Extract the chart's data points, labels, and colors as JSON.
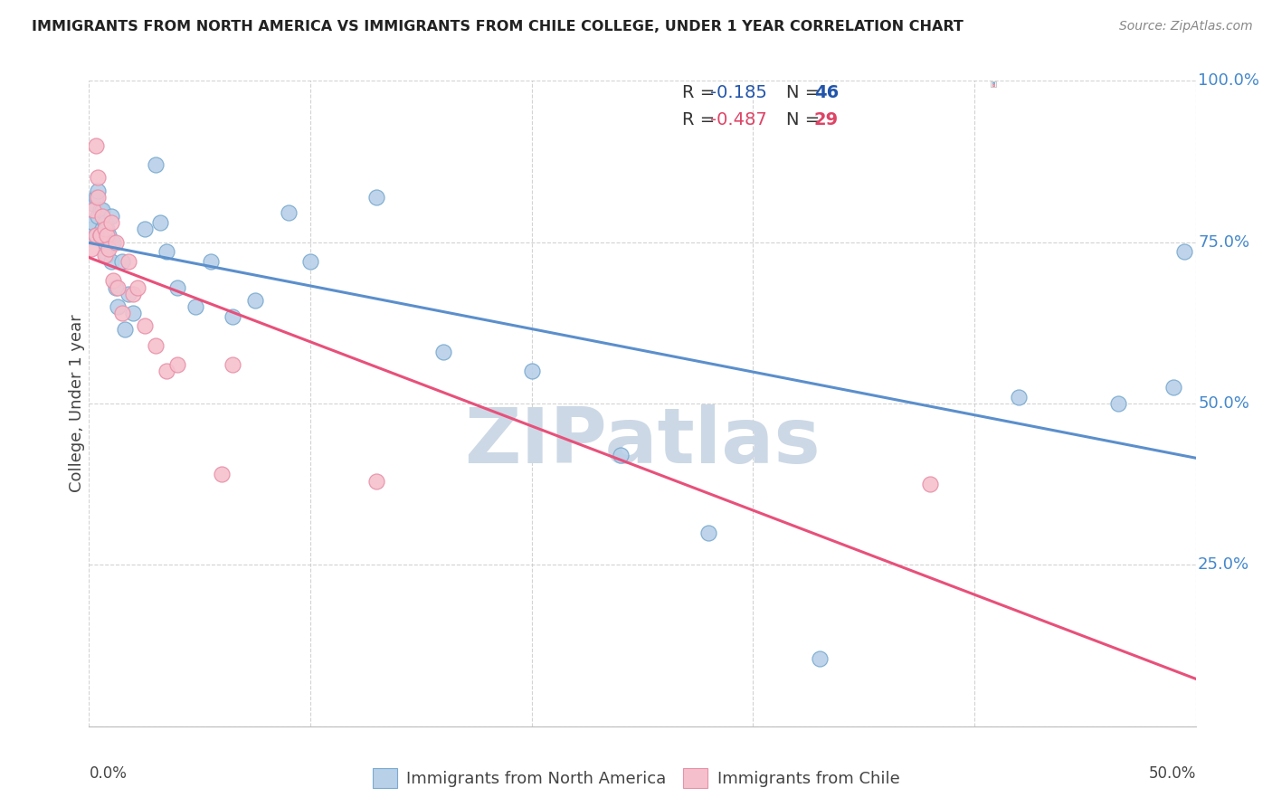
{
  "title": "IMMIGRANTS FROM NORTH AMERICA VS IMMIGRANTS FROM CHILE COLLEGE, UNDER 1 YEAR CORRELATION CHART",
  "source": "Source: ZipAtlas.com",
  "ylabel": "College, Under 1 year",
  "ylabel_right_ticks": [
    [
      "100.0%",
      1.0
    ],
    [
      "75.0%",
      0.75
    ],
    [
      "50.0%",
      0.5
    ],
    [
      "25.0%",
      0.25
    ]
  ],
  "legend_label_blue": "Immigrants from North America",
  "legend_label_pink": "Immigrants from Chile",
  "legend_blue_r": "-0.185",
  "legend_blue_n": "46",
  "legend_pink_r": "-0.487",
  "legend_pink_n": "29",
  "xlim": [
    0.0,
    0.5
  ],
  "ylim": [
    0.0,
    1.0
  ],
  "blue_scatter_x": [
    0.001,
    0.002,
    0.002,
    0.003,
    0.003,
    0.004,
    0.004,
    0.005,
    0.005,
    0.006,
    0.006,
    0.007,
    0.007,
    0.008,
    0.008,
    0.009,
    0.01,
    0.01,
    0.011,
    0.012,
    0.013,
    0.015,
    0.016,
    0.018,
    0.02,
    0.025,
    0.03,
    0.032,
    0.035,
    0.04,
    0.048,
    0.055,
    0.065,
    0.075,
    0.09,
    0.1,
    0.13,
    0.16,
    0.2,
    0.24,
    0.28,
    0.33,
    0.42,
    0.465,
    0.49,
    0.495
  ],
  "blue_scatter_y": [
    0.77,
    0.78,
    0.81,
    0.76,
    0.82,
    0.79,
    0.83,
    0.76,
    0.8,
    0.77,
    0.8,
    0.75,
    0.78,
    0.73,
    0.77,
    0.76,
    0.79,
    0.72,
    0.75,
    0.68,
    0.65,
    0.72,
    0.615,
    0.67,
    0.64,
    0.77,
    0.87,
    0.78,
    0.735,
    0.68,
    0.65,
    0.72,
    0.635,
    0.66,
    0.795,
    0.72,
    0.82,
    0.58,
    0.55,
    0.42,
    0.3,
    0.105,
    0.51,
    0.5,
    0.525,
    0.735
  ],
  "pink_scatter_x": [
    0.001,
    0.002,
    0.003,
    0.003,
    0.004,
    0.004,
    0.005,
    0.005,
    0.006,
    0.007,
    0.007,
    0.008,
    0.009,
    0.01,
    0.011,
    0.012,
    0.013,
    0.015,
    0.018,
    0.02,
    0.022,
    0.025,
    0.03,
    0.035,
    0.04,
    0.06,
    0.065,
    0.13,
    0.38
  ],
  "pink_scatter_y": [
    0.74,
    0.8,
    0.76,
    0.9,
    0.82,
    0.85,
    0.76,
    0.76,
    0.79,
    0.73,
    0.77,
    0.76,
    0.74,
    0.78,
    0.69,
    0.75,
    0.68,
    0.64,
    0.72,
    0.67,
    0.68,
    0.62,
    0.59,
    0.55,
    0.56,
    0.39,
    0.56,
    0.38,
    0.375
  ],
  "blue_color": "#b8d0e8",
  "blue_edge_color": "#7aaad0",
  "pink_color": "#f5c0cc",
  "pink_edge_color": "#e890a8",
  "blue_line_color": "#5b8fcc",
  "pink_line_color": "#e8507a",
  "watermark_text": "ZIPatlas",
  "watermark_color": "#ccd8e5",
  "background_color": "#ffffff",
  "grid_color": "#c8c8c8",
  "title_color": "#222222",
  "axis_color": "#444444",
  "right_tick_color": "#4488cc",
  "blue_legend_r_color": "#2255aa",
  "blue_legend_n_color": "#2255aa",
  "pink_legend_r_color": "#dd4466",
  "pink_legend_n_color": "#dd4466",
  "legend_text_color": "#333333"
}
